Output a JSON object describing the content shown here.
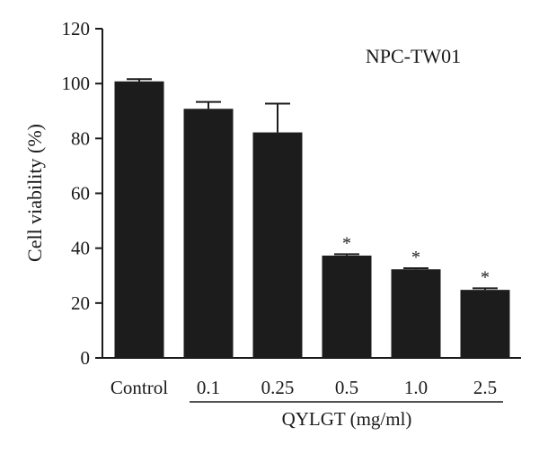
{
  "chart_data": {
    "type": "bar",
    "title": "NPC-TW01",
    "xlabel": "QYLGT (mg/ml)",
    "ylabel": "Cell viability (%)",
    "categories": [
      "Control",
      "0.1",
      "0.25",
      "0.5",
      "1.0",
      "2.5"
    ],
    "values": [
      100.8,
      90.8,
      82.2,
      37.3,
      32.3,
      24.8
    ],
    "errors": [
      0.8,
      2.5,
      10.5,
      0.5,
      0.4,
      0.6
    ],
    "annotations": [
      "",
      "",
      "",
      "*",
      "*",
      "*"
    ],
    "ylim": [
      0,
      120
    ],
    "yticks": [
      0,
      20,
      40,
      60,
      80,
      100,
      120
    ],
    "grid": false,
    "bar_color": "#1c1c1c",
    "axis_color": "#1a1a1a"
  }
}
